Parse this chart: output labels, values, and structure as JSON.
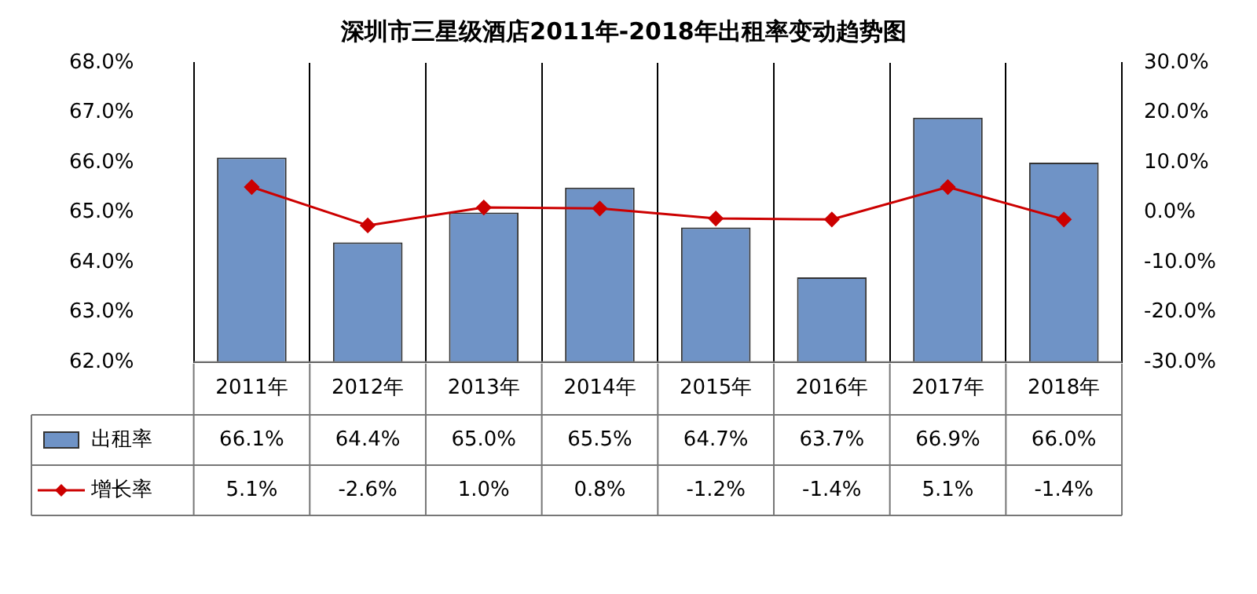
{
  "chart_data": {
    "type": "bar",
    "title": "深圳市三星级酒店2011年-2018年出租率变动趋势图",
    "categories": [
      "2011年",
      "2012年",
      "2013年",
      "2014年",
      "2015年",
      "2016年",
      "2017年",
      "2018年"
    ],
    "series": [
      {
        "name": "出租率",
        "color": "#6f93c6",
        "values": [
          66.1,
          64.4,
          65.0,
          65.5,
          64.7,
          63.7,
          66.9,
          66.0
        ],
        "value_labels": [
          "66.1%",
          "64.4%",
          "65.0%",
          "65.5%",
          "64.7%",
          "63.7%",
          "66.9%",
          "66.0%"
        ]
      },
      {
        "name": "增长率",
        "type": "line",
        "axis": "y2",
        "color": "#cc0000",
        "values": [
          5.1,
          -2.6,
          1.0,
          0.8,
          -1.2,
          -1.4,
          5.1,
          -1.4
        ],
        "value_labels": [
          "5.1%",
          "-2.6%",
          "1.0%",
          "0.8%",
          "-1.2%",
          "-1.4%",
          "5.1%",
          "-1.4%"
        ]
      }
    ],
    "ylim": [
      62,
      68
    ],
    "yticks": [
      {
        "value": 62,
        "label": "62.0%"
      },
      {
        "value": 63,
        "label": "63.0%"
      },
      {
        "value": 64,
        "label": "64.0%"
      },
      {
        "value": 65,
        "label": "65.0%"
      },
      {
        "value": 66,
        "label": "66.0%"
      },
      {
        "value": 67,
        "label": "67.0%"
      },
      {
        "value": 68,
        "label": "68.0%"
      }
    ],
    "y2lim": [
      -30,
      30
    ],
    "y2ticks": [
      {
        "value": -30,
        "label": "-30.0%"
      },
      {
        "value": -20,
        "label": "-20.0%"
      },
      {
        "value": -10,
        "label": "-10.0%"
      },
      {
        "value": 0,
        "label": "0.0%"
      },
      {
        "value": 10,
        "label": "10.0%"
      },
      {
        "value": 20,
        "label": "20.0%"
      },
      {
        "value": 30,
        "label": "30.0%"
      }
    ],
    "grid": "x",
    "legend": "bottom",
    "marker": "diamond",
    "line_style": "solid"
  }
}
